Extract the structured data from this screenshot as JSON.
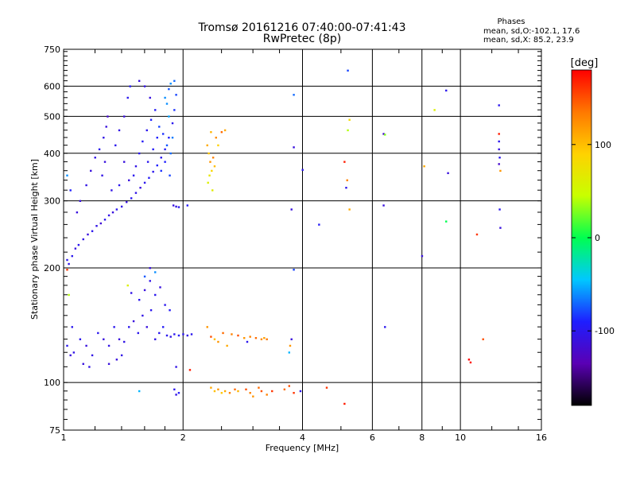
{
  "chart_data": {
    "type": "scatter",
    "title": "Tromsø 20161216 07:40:00-07:41:43",
    "subtitle": "RwPretec (8p)",
    "stats": {
      "heading": "Phases",
      "line1": "mean, sd,O:-102.1, 17.6",
      "line2": "mean, sd,X:  85.2, 23.9"
    },
    "xlabel": "Frequency [MHz]",
    "ylabel": "Stationary phase Virtual Height [km]",
    "x_scale": "log",
    "y_scale": "log",
    "xlim": [
      1,
      16
    ],
    "ylim": [
      75,
      750
    ],
    "x_ticks": [
      1,
      2,
      4,
      6,
      8,
      10,
      16
    ],
    "y_ticks": [
      75,
      100,
      200,
      300,
      400,
      500,
      600,
      750
    ],
    "vertical_gridlines": [
      2,
      4,
      6,
      8,
      10
    ],
    "horizontal_gridlines": [
      100,
      200,
      300,
      400,
      500,
      600
    ],
    "grid": true,
    "colorbar": {
      "label": "[deg]",
      "range": [
        -180,
        180
      ],
      "ticks": [
        100,
        0,
        -100
      ],
      "colors": [
        "#000000",
        "#5a00b4",
        "#1e1eff",
        "#00c8ff",
        "#00ff50",
        "#c8ff00",
        "#ffd200",
        "#ff7800",
        "#ff0000"
      ]
    },
    "points": [
      {
        "x": 1.02,
        "y": 210,
        "c": -100
      },
      {
        "x": 1.03,
        "y": 205,
        "c": -105
      },
      {
        "x": 1.05,
        "y": 215,
        "c": -100
      },
      {
        "x": 1.07,
        "y": 225,
        "c": -110
      },
      {
        "x": 1.09,
        "y": 230,
        "c": -100
      },
      {
        "x": 1.12,
        "y": 238,
        "c": -105
      },
      {
        "x": 1.15,
        "y": 245,
        "c": -110
      },
      {
        "x": 1.18,
        "y": 250,
        "c": -100
      },
      {
        "x": 1.21,
        "y": 258,
        "c": -105
      },
      {
        "x": 1.24,
        "y": 262,
        "c": -115
      },
      {
        "x": 1.27,
        "y": 268,
        "c": -100
      },
      {
        "x": 1.3,
        "y": 275,
        "c": -105
      },
      {
        "x": 1.33,
        "y": 280,
        "c": -110
      },
      {
        "x": 1.36,
        "y": 285,
        "c": -100
      },
      {
        "x": 1.4,
        "y": 290,
        "c": -105
      },
      {
        "x": 1.44,
        "y": 298,
        "c": -110
      },
      {
        "x": 1.48,
        "y": 305,
        "c": -100
      },
      {
        "x": 1.52,
        "y": 315,
        "c": -105
      },
      {
        "x": 1.56,
        "y": 325,
        "c": -110
      },
      {
        "x": 1.6,
        "y": 335,
        "c": -100
      },
      {
        "x": 1.64,
        "y": 345,
        "c": -95
      },
      {
        "x": 1.68,
        "y": 358,
        "c": -100
      },
      {
        "x": 1.72,
        "y": 372,
        "c": -90
      },
      {
        "x": 1.76,
        "y": 390,
        "c": -100
      },
      {
        "x": 1.8,
        "y": 410,
        "c": -95
      },
      {
        "x": 1.84,
        "y": 440,
        "c": -90
      },
      {
        "x": 1.88,
        "y": 480,
        "c": -100
      },
      {
        "x": 1.9,
        "y": 520,
        "c": -85
      },
      {
        "x": 1.92,
        "y": 570,
        "c": -80
      },
      {
        "x": 1.9,
        "y": 620,
        "c": -70
      },
      {
        "x": 1.86,
        "y": 610,
        "c": -60
      },
      {
        "x": 1.84,
        "y": 590,
        "c": -75
      },
      {
        "x": 1.8,
        "y": 560,
        "c": -60
      },
      {
        "x": 1.1,
        "y": 300,
        "c": -110
      },
      {
        "x": 1.14,
        "y": 330,
        "c": -105
      },
      {
        "x": 1.17,
        "y": 360,
        "c": -110
      },
      {
        "x": 1.2,
        "y": 390,
        "c": -105
      },
      {
        "x": 1.23,
        "y": 410,
        "c": -100
      },
      {
        "x": 1.26,
        "y": 440,
        "c": -105
      },
      {
        "x": 1.28,
        "y": 470,
        "c": -110
      },
      {
        "x": 1.29,
        "y": 500,
        "c": -120
      },
      {
        "x": 1.25,
        "y": 350,
        "c": -105
      },
      {
        "x": 1.27,
        "y": 380,
        "c": -110
      },
      {
        "x": 1.35,
        "y": 420,
        "c": -100
      },
      {
        "x": 1.38,
        "y": 460,
        "c": -105
      },
      {
        "x": 1.42,
        "y": 500,
        "c": -110
      },
      {
        "x": 1.45,
        "y": 560,
        "c": -100
      },
      {
        "x": 1.47,
        "y": 600,
        "c": -95
      },
      {
        "x": 1.55,
        "y": 620,
        "c": -110
      },
      {
        "x": 1.6,
        "y": 600,
        "c": -105
      },
      {
        "x": 1.65,
        "y": 560,
        "c": -110
      },
      {
        "x": 1.55,
        "y": 400,
        "c": -100
      },
      {
        "x": 1.58,
        "y": 430,
        "c": -95
      },
      {
        "x": 1.62,
        "y": 460,
        "c": -100
      },
      {
        "x": 1.66,
        "y": 490,
        "c": -90
      },
      {
        "x": 1.7,
        "y": 520,
        "c": -95
      },
      {
        "x": 1.74,
        "y": 470,
        "c": -80
      },
      {
        "x": 1.78,
        "y": 450,
        "c": -85
      },
      {
        "x": 1.82,
        "y": 420,
        "c": -75
      },
      {
        "x": 1.86,
        "y": 400,
        "c": -70
      },
      {
        "x": 1.88,
        "y": 440,
        "c": -65
      },
      {
        "x": 1.84,
        "y": 500,
        "c": -55
      },
      {
        "x": 1.82,
        "y": 540,
        "c": -60
      },
      {
        "x": 1.5,
        "y": 350,
        "c": -100
      },
      {
        "x": 1.52,
        "y": 370,
        "c": -105
      },
      {
        "x": 1.46,
        "y": 340,
        "c": -110
      },
      {
        "x": 1.38,
        "y": 330,
        "c": -100
      },
      {
        "x": 1.32,
        "y": 320,
        "c": -105
      },
      {
        "x": 1.42,
        "y": 380,
        "c": -110
      },
      {
        "x": 1.63,
        "y": 380,
        "c": -100
      },
      {
        "x": 1.68,
        "y": 410,
        "c": -95
      },
      {
        "x": 1.72,
        "y": 440,
        "c": -90
      },
      {
        "x": 1.76,
        "y": 360,
        "c": -85
      },
      {
        "x": 1.8,
        "y": 380,
        "c": -90
      },
      {
        "x": 1.85,
        "y": 350,
        "c": -80
      },
      {
        "x": 1.04,
        "y": 320,
        "c": -90
      },
      {
        "x": 1.02,
        "y": 350,
        "c": -60
      },
      {
        "x": 1.08,
        "y": 280,
        "c": -110
      },
      {
        "x": 1.89,
        "y": 292,
        "c": -110
      },
      {
        "x": 1.92,
        "y": 290,
        "c": -105
      },
      {
        "x": 1.95,
        "y": 289,
        "c": -100
      },
      {
        "x": 2.05,
        "y": 292,
        "c": -95
      },
      {
        "x": 1.02,
        "y": 125,
        "c": -100
      },
      {
        "x": 1.04,
        "y": 118,
        "c": -110
      },
      {
        "x": 1.06,
        "y": 120,
        "c": -105
      },
      {
        "x": 1.1,
        "y": 130,
        "c": -100
      },
      {
        "x": 1.14,
        "y": 125,
        "c": -110
      },
      {
        "x": 1.18,
        "y": 118,
        "c": -105
      },
      {
        "x": 1.22,
        "y": 135,
        "c": -100
      },
      {
        "x": 1.26,
        "y": 130,
        "c": -110
      },
      {
        "x": 1.3,
        "y": 125,
        "c": -105
      },
      {
        "x": 1.34,
        "y": 140,
        "c": -100
      },
      {
        "x": 1.38,
        "y": 130,
        "c": -110
      },
      {
        "x": 1.42,
        "y": 128,
        "c": -105
      },
      {
        "x": 1.46,
        "y": 140,
        "c": -100
      },
      {
        "x": 1.5,
        "y": 145,
        "c": -110
      },
      {
        "x": 1.54,
        "y": 135,
        "c": -100
      },
      {
        "x": 1.58,
        "y": 150,
        "c": -105
      },
      {
        "x": 1.62,
        "y": 140,
        "c": -110
      },
      {
        "x": 1.66,
        "y": 155,
        "c": -100
      },
      {
        "x": 1.7,
        "y": 130,
        "c": -105
      },
      {
        "x": 1.74,
        "y": 135,
        "c": -100
      },
      {
        "x": 1.78,
        "y": 140,
        "c": -95
      },
      {
        "x": 1.82,
        "y": 133,
        "c": -100
      },
      {
        "x": 1.86,
        "y": 132,
        "c": -105
      },
      {
        "x": 1.9,
        "y": 134,
        "c": -100
      },
      {
        "x": 1.95,
        "y": 133,
        "c": -95
      },
      {
        "x": 2.0,
        "y": 134,
        "c": -100
      },
      {
        "x": 2.05,
        "y": 133,
        "c": -105
      },
      {
        "x": 2.1,
        "y": 134,
        "c": -100
      },
      {
        "x": 1.12,
        "y": 112,
        "c": -110
      },
      {
        "x": 1.16,
        "y": 110,
        "c": -105
      },
      {
        "x": 1.36,
        "y": 115,
        "c": -110
      },
      {
        "x": 1.4,
        "y": 118,
        "c": -105
      },
      {
        "x": 1.3,
        "y": 112,
        "c": -110
      },
      {
        "x": 1.55,
        "y": 165,
        "c": -100
      },
      {
        "x": 1.6,
        "y": 175,
        "c": -110
      },
      {
        "x": 1.65,
        "y": 185,
        "c": -105
      },
      {
        "x": 1.7,
        "y": 170,
        "c": -100
      },
      {
        "x": 1.75,
        "y": 178,
        "c": -110
      },
      {
        "x": 1.8,
        "y": 160,
        "c": -100
      },
      {
        "x": 1.85,
        "y": 155,
        "c": -95
      },
      {
        "x": 1.48,
        "y": 172,
        "c": -105
      },
      {
        "x": 1.45,
        "y": 180,
        "c": 60
      },
      {
        "x": 1.6,
        "y": 190,
        "c": -75
      },
      {
        "x": 1.7,
        "y": 195,
        "c": -60
      },
      {
        "x": 1.65,
        "y": 200,
        "c": -110
      },
      {
        "x": 1.92,
        "y": 110,
        "c": -105
      },
      {
        "x": 1.03,
        "y": 170,
        "c": 40
      },
      {
        "x": 1.02,
        "y": 198,
        "c": 160
      },
      {
        "x": 1.05,
        "y": 140,
        "c": -100
      },
      {
        "x": 1.55,
        "y": 95,
        "c": -50
      },
      {
        "x": 1.9,
        "y": 96,
        "c": -100
      },
      {
        "x": 1.92,
        "y": 93,
        "c": -105
      },
      {
        "x": 1.95,
        "y": 94,
        "c": -95
      },
      {
        "x": 2.08,
        "y": 108,
        "c": 170
      },
      {
        "x": 2.3,
        "y": 420,
        "c": 110
      },
      {
        "x": 2.32,
        "y": 400,
        "c": 95
      },
      {
        "x": 2.34,
        "y": 380,
        "c": 120
      },
      {
        "x": 2.36,
        "y": 360,
        "c": 85
      },
      {
        "x": 2.33,
        "y": 350,
        "c": 70
      },
      {
        "x": 2.31,
        "y": 335,
        "c": 60
      },
      {
        "x": 2.38,
        "y": 390,
        "c": 130
      },
      {
        "x": 2.4,
        "y": 370,
        "c": 100
      },
      {
        "x": 2.42,
        "y": 440,
        "c": 125
      },
      {
        "x": 2.45,
        "y": 420,
        "c": 90
      },
      {
        "x": 2.5,
        "y": 455,
        "c": 140
      },
      {
        "x": 2.55,
        "y": 460,
        "c": 110
      },
      {
        "x": 2.35,
        "y": 455,
        "c": 105
      },
      {
        "x": 2.37,
        "y": 320,
        "c": 65
      },
      {
        "x": 2.3,
        "y": 140,
        "c": 120
      },
      {
        "x": 2.35,
        "y": 132,
        "c": 150
      },
      {
        "x": 2.4,
        "y": 130,
        "c": 100
      },
      {
        "x": 2.45,
        "y": 128,
        "c": 120
      },
      {
        "x": 2.52,
        "y": 135,
        "c": 140
      },
      {
        "x": 2.58,
        "y": 125,
        "c": 110
      },
      {
        "x": 2.65,
        "y": 134,
        "c": 130
      },
      {
        "x": 2.75,
        "y": 133,
        "c": 150
      },
      {
        "x": 2.85,
        "y": 131,
        "c": 120
      },
      {
        "x": 2.95,
        "y": 132,
        "c": 130
      },
      {
        "x": 3.05,
        "y": 131,
        "c": 140
      },
      {
        "x": 3.15,
        "y": 130,
        "c": 125
      },
      {
        "x": 3.2,
        "y": 131,
        "c": 115
      },
      {
        "x": 2.9,
        "y": 128,
        "c": -100
      },
      {
        "x": 3.25,
        "y": 130,
        "c": 135
      },
      {
        "x": 2.35,
        "y": 97,
        "c": 110
      },
      {
        "x": 2.4,
        "y": 95,
        "c": 100
      },
      {
        "x": 2.45,
        "y": 96,
        "c": 120
      },
      {
        "x": 2.5,
        "y": 94,
        "c": 95
      },
      {
        "x": 2.55,
        "y": 95,
        "c": 110
      },
      {
        "x": 2.62,
        "y": 94,
        "c": 130
      },
      {
        "x": 2.7,
        "y": 96,
        "c": 140
      },
      {
        "x": 2.75,
        "y": 95,
        "c": 105
      },
      {
        "x": 2.88,
        "y": 96,
        "c": 150
      },
      {
        "x": 2.95,
        "y": 94,
        "c": 130
      },
      {
        "x": 3.0,
        "y": 92,
        "c": 120
      },
      {
        "x": 3.1,
        "y": 97,
        "c": 140
      },
      {
        "x": 3.15,
        "y": 95,
        "c": 150
      },
      {
        "x": 3.25,
        "y": 93,
        "c": 130
      },
      {
        "x": 3.35,
        "y": 95,
        "c": 160
      },
      {
        "x": 3.6,
        "y": 96,
        "c": 140
      },
      {
        "x": 3.7,
        "y": 98,
        "c": 150
      },
      {
        "x": 3.8,
        "y": 94,
        "c": 160
      },
      {
        "x": 3.95,
        "y": 95,
        "c": -100
      },
      {
        "x": 4.6,
        "y": 97,
        "c": 160
      },
      {
        "x": 5.1,
        "y": 88,
        "c": 170
      },
      {
        "x": 3.75,
        "y": 130,
        "c": -110
      },
      {
        "x": 3.7,
        "y": 120,
        "c": -50
      },
      {
        "x": 3.72,
        "y": 125,
        "c": 120
      },
      {
        "x": 3.8,
        "y": 570,
        "c": -70
      },
      {
        "x": 3.8,
        "y": 415,
        "c": -110
      },
      {
        "x": 4.0,
        "y": 362,
        "c": -100
      },
      {
        "x": 3.75,
        "y": 285,
        "c": -110
      },
      {
        "x": 3.8,
        "y": 198,
        "c": -80
      },
      {
        "x": 4.4,
        "y": 260,
        "c": -95
      },
      {
        "x": 5.2,
        "y": 660,
        "c": -80
      },
      {
        "x": 5.25,
        "y": 490,
        "c": 80
      },
      {
        "x": 5.2,
        "y": 460,
        "c": 40
      },
      {
        "x": 5.1,
        "y": 380,
        "c": 170
      },
      {
        "x": 5.15,
        "y": 325,
        "c": -100
      },
      {
        "x": 5.25,
        "y": 285,
        "c": 110
      },
      {
        "x": 5.18,
        "y": 340,
        "c": 130
      },
      {
        "x": 6.4,
        "y": 450,
        "c": -120
      },
      {
        "x": 6.45,
        "y": 448,
        "c": 30
      },
      {
        "x": 6.4,
        "y": 292,
        "c": -110
      },
      {
        "x": 6.45,
        "y": 140,
        "c": -100
      },
      {
        "x": 8.0,
        "y": 215,
        "c": -110
      },
      {
        "x": 8.1,
        "y": 370,
        "c": 110
      },
      {
        "x": 8.6,
        "y": 520,
        "c": 60
      },
      {
        "x": 9.2,
        "y": 585,
        "c": -100
      },
      {
        "x": 9.3,
        "y": 355,
        "c": -110
      },
      {
        "x": 9.2,
        "y": 265,
        "c": 0
      },
      {
        "x": 10.5,
        "y": 115,
        "c": 180
      },
      {
        "x": 10.6,
        "y": 113,
        "c": 175
      },
      {
        "x": 11.0,
        "y": 245,
        "c": 160
      },
      {
        "x": 11.4,
        "y": 130,
        "c": 150
      },
      {
        "x": 12.5,
        "y": 535,
        "c": -100
      },
      {
        "x": 12.5,
        "y": 450,
        "c": 170
      },
      {
        "x": 12.5,
        "y": 430,
        "c": -100
      },
      {
        "x": 12.5,
        "y": 410,
        "c": -110
      },
      {
        "x": 12.55,
        "y": 390,
        "c": -100
      },
      {
        "x": 12.5,
        "y": 375,
        "c": -120
      },
      {
        "x": 12.6,
        "y": 360,
        "c": 120
      },
      {
        "x": 12.55,
        "y": 285,
        "c": -100
      },
      {
        "x": 12.6,
        "y": 255,
        "c": -110
      }
    ]
  }
}
